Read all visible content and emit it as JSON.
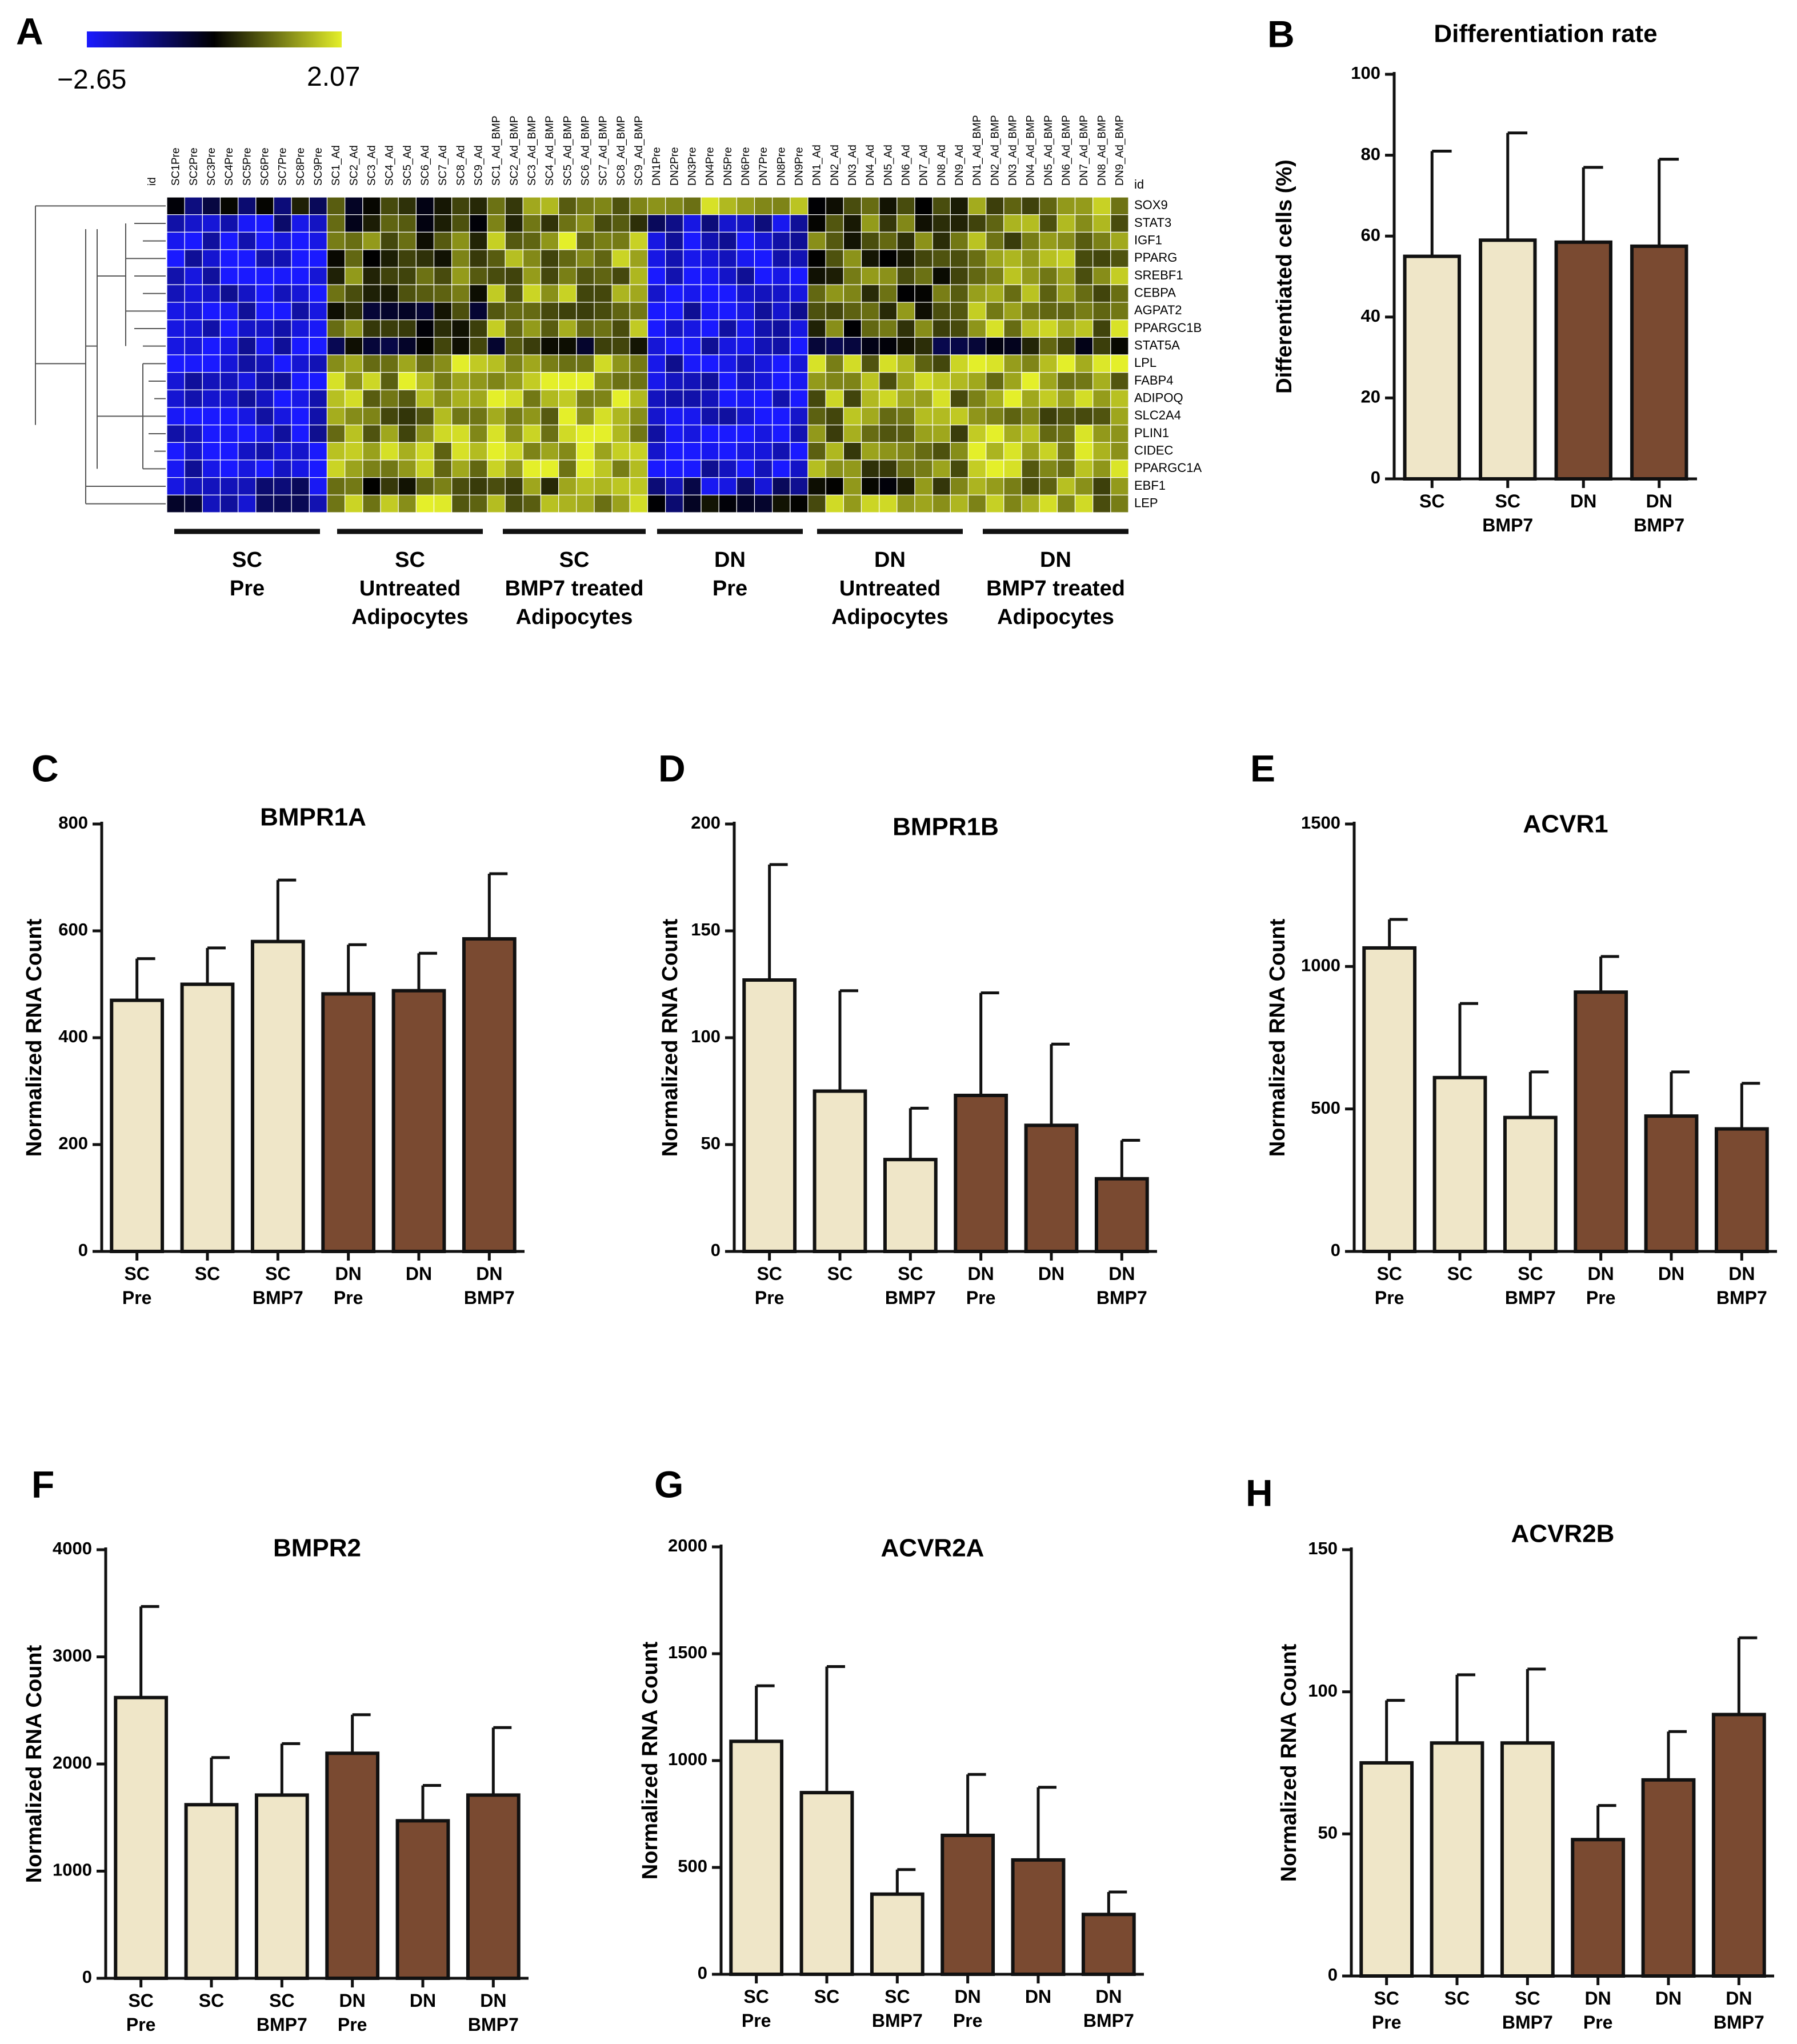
{
  "colors": {
    "sc": "#efe6c8",
    "dn": "#7a4a31",
    "heat_low": "#1a1aff",
    "heat_mid": "#000000",
    "heat_high": "#e4ef2a",
    "axis": "#111111"
  },
  "heatmap": {
    "label": "A",
    "scale_min": "−2.65",
    "scale_max": "2.07",
    "id_label": "id",
    "columns": [
      "SC1Pre",
      "SC2Pre",
      "SC3Pre",
      "SC4Pre",
      "SC5Pre",
      "SC6Pre",
      "SC7Pre",
      "SC8Pre",
      "SC9Pre",
      "SC1_Ad",
      "SC2_Ad",
      "SC3_Ad",
      "SC4_Ad",
      "SC5_Ad",
      "SC6_Ad",
      "SC7_Ad",
      "SC8_Ad",
      "SC9_Ad",
      "SC1_Ad_BMP",
      "SC2_Ad_BMP",
      "SC3_Ad_BMP",
      "SC4_Ad_BMP",
      "SC5_Ad_BMP",
      "SC6_Ad_BMP",
      "SC7_Ad_BMP",
      "SC8_Ad_BMP",
      "SC9_Ad_BMP",
      "DN1Pre",
      "DN2Pre",
      "DN3Pre",
      "DN4Pre",
      "DN5Pre",
      "DN6Pre",
      "DN7Pre",
      "DN8Pre",
      "DN9Pre",
      "DN1_Ad",
      "DN2_Ad",
      "DN3_Ad",
      "DN4_Ad",
      "DN5_Ad",
      "DN6_Ad",
      "DN7_Ad",
      "DN8_Ad",
      "DN9_Ad",
      "DN1_Ad_BMP",
      "DN2_Ad_BMP",
      "DN3_Ad_BMP",
      "DN4_Ad_BMP",
      "DN5_Ad_BMP",
      "DN6_Ad_BMP",
      "DN7_Ad_BMP",
      "DN8_Ad_BMP",
      "DN9_Ad_BMP"
    ],
    "rows": [
      "SOX9",
      "STAT3",
      "IGF1",
      "PPARG",
      "SREBF1",
      "CEBPA",
      "AGPAT2",
      "PPARGC1B",
      "STAT5A",
      "LPL",
      "FABP4",
      "ADIPOQ",
      "SLC2A4",
      "PLIN1",
      "CIDEC",
      "PPARGC1A",
      "EBF1",
      "LEP"
    ],
    "groups": [
      {
        "lines": [
          "SC",
          "Pre"
        ]
      },
      {
        "lines": [
          "SC",
          "Untreated",
          "Adipocytes"
        ]
      },
      {
        "lines": [
          "SC",
          "BMP7 treated",
          "Adipocytes"
        ]
      },
      {
        "lines": [
          "DN",
          "Pre"
        ]
      },
      {
        "lines": [
          "DN",
          "Untreated",
          "Adipocytes"
        ]
      },
      {
        "lines": [
          "DN",
          "BMP7 treated",
          "Adipocytes"
        ]
      }
    ]
  },
  "chart_data": [
    {
      "id": "B",
      "type": "bar",
      "title": "Differentiation rate",
      "ylabel": "Differentiated cells (%)",
      "ylim": [
        0,
        100
      ],
      "yticks": [
        0,
        20,
        40,
        60,
        80,
        100
      ],
      "categories": [
        [
          "SC"
        ],
        [
          "SC",
          "BMP7"
        ],
        [
          "DN"
        ],
        [
          "DN",
          "BMP7"
        ]
      ],
      "values": [
        55,
        59,
        58.5,
        57.5
      ],
      "errors": [
        26,
        26.5,
        18.5,
        21.5
      ],
      "groups": [
        "sc",
        "sc",
        "dn",
        "dn"
      ]
    },
    {
      "id": "C",
      "type": "bar",
      "title": "BMPR1A",
      "ylabel": "Normalized RNA Count",
      "ylim": [
        0,
        800
      ],
      "yticks": [
        0,
        200,
        400,
        600,
        800
      ],
      "categories": [
        [
          "SC",
          "Pre"
        ],
        [
          "SC"
        ],
        [
          "SC",
          "BMP7"
        ],
        [
          "DN",
          "Pre"
        ],
        [
          "DN"
        ],
        [
          "DN",
          "BMP7"
        ]
      ],
      "values": [
        470,
        500,
        580,
        482,
        488,
        585
      ],
      "errors": [
        78,
        68,
        115,
        92,
        70,
        122
      ],
      "groups": [
        "sc",
        "sc",
        "sc",
        "dn",
        "dn",
        "dn"
      ]
    },
    {
      "id": "D",
      "type": "bar",
      "title": "BMPR1B",
      "ylabel": "Normalized RNA Count",
      "ylim": [
        0,
        200
      ],
      "yticks": [
        0,
        50,
        100,
        150,
        200
      ],
      "categories": [
        [
          "SC",
          "Pre"
        ],
        [
          "SC"
        ],
        [
          "SC",
          "BMP7"
        ],
        [
          "DN",
          "Pre"
        ],
        [
          "DN"
        ],
        [
          "DN",
          "BMP7"
        ]
      ],
      "values": [
        127,
        75,
        43,
        73,
        59,
        34
      ],
      "errors": [
        54,
        47,
        24,
        48,
        38,
        18
      ],
      "groups": [
        "sc",
        "sc",
        "sc",
        "dn",
        "dn",
        "dn"
      ]
    },
    {
      "id": "E",
      "type": "bar",
      "title": "ACVR1",
      "ylabel": "Normalized RNA Count",
      "ylim": [
        0,
        1500
      ],
      "yticks": [
        0,
        500,
        1000,
        1500
      ],
      "categories": [
        [
          "SC",
          "Pre"
        ],
        [
          "SC"
        ],
        [
          "SC",
          "BMP7"
        ],
        [
          "DN",
          "Pre"
        ],
        [
          "DN"
        ],
        [
          "DN",
          "BMP7"
        ]
      ],
      "values": [
        1065,
        610,
        470,
        910,
        475,
        430
      ],
      "errors": [
        100,
        260,
        160,
        125,
        155,
        160
      ],
      "groups": [
        "sc",
        "sc",
        "sc",
        "dn",
        "dn",
        "dn"
      ]
    },
    {
      "id": "F",
      "type": "bar",
      "title": "BMPR2",
      "ylabel": "Normalized RNA Count",
      "ylim": [
        0,
        4000
      ],
      "yticks": [
        0,
        1000,
        2000,
        3000,
        4000
      ],
      "categories": [
        [
          "SC",
          "Pre"
        ],
        [
          "SC"
        ],
        [
          "SC",
          "BMP7"
        ],
        [
          "DN",
          "Pre"
        ],
        [
          "DN"
        ],
        [
          "DN",
          "BMP7"
        ]
      ],
      "values": [
        2620,
        1620,
        1710,
        2100,
        1470,
        1710
      ],
      "errors": [
        850,
        440,
        480,
        360,
        330,
        630
      ],
      "groups": [
        "sc",
        "sc",
        "sc",
        "dn",
        "dn",
        "dn"
      ]
    },
    {
      "id": "G",
      "type": "bar",
      "title": "ACVR2A",
      "ylabel": "Normalized RNA Count",
      "ylim": [
        0,
        2000
      ],
      "yticks": [
        0,
        500,
        1000,
        1500,
        2000
      ],
      "categories": [
        [
          "SC",
          "Pre"
        ],
        [
          "SC"
        ],
        [
          "SC",
          "BMP7"
        ],
        [
          "DN",
          "Pre"
        ],
        [
          "DN"
        ],
        [
          "DN",
          "BMP7"
        ]
      ],
      "values": [
        1090,
        850,
        375,
        650,
        535,
        280
      ],
      "errors": [
        260,
        590,
        115,
        285,
        340,
        105
      ],
      "groups": [
        "sc",
        "sc",
        "sc",
        "dn",
        "dn",
        "dn"
      ]
    },
    {
      "id": "H",
      "type": "bar",
      "title": "ACVR2B",
      "ylabel": "Normalized RNA Count",
      "ylim": [
        0,
        150
      ],
      "yticks": [
        0,
        50,
        100,
        150
      ],
      "categories": [
        [
          "SC",
          "Pre"
        ],
        [
          "SC"
        ],
        [
          "SC",
          "BMP7"
        ],
        [
          "DN",
          "Pre"
        ],
        [
          "DN"
        ],
        [
          "DN",
          "BMP7"
        ]
      ],
      "values": [
        75,
        82,
        82,
        48,
        69,
        92
      ],
      "errors": [
        22,
        24,
        26,
        12,
        17,
        27
      ],
      "groups": [
        "sc",
        "sc",
        "sc",
        "dn",
        "dn",
        "dn"
      ]
    }
  ]
}
